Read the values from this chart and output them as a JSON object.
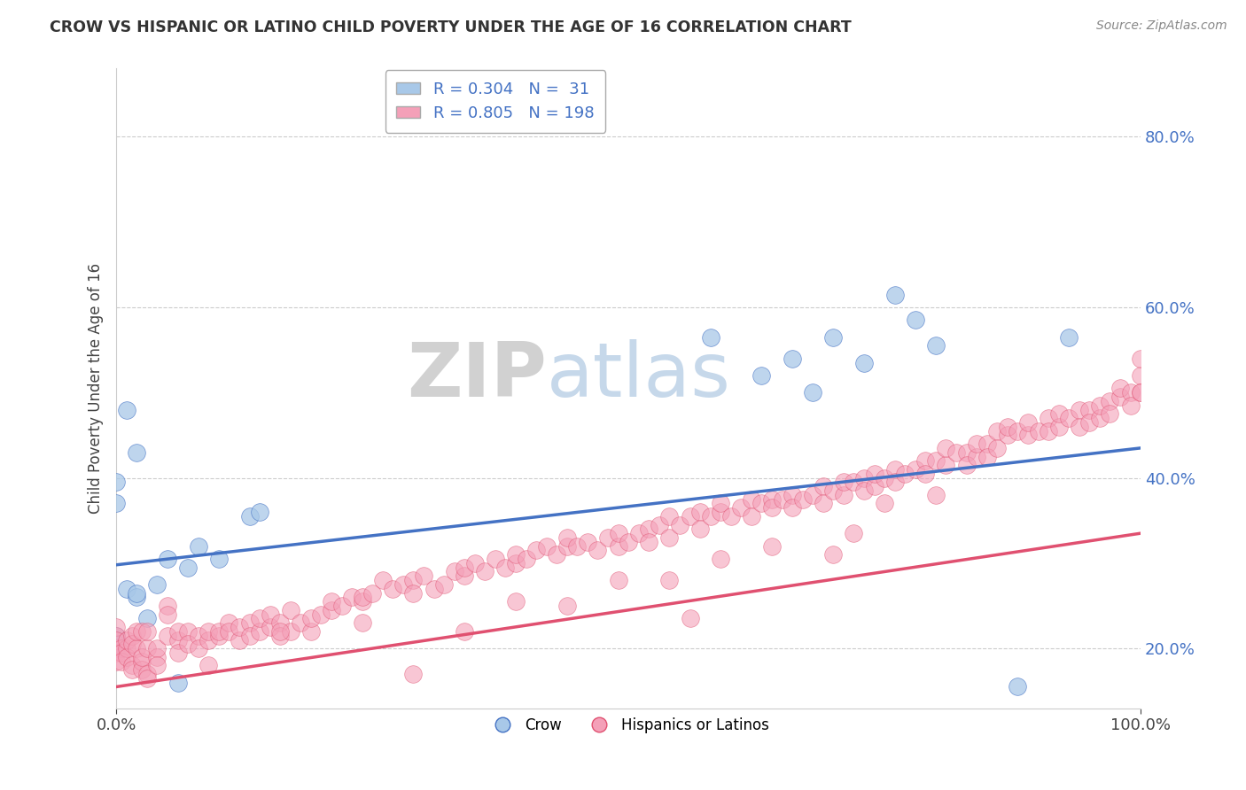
{
  "title": "CROW VS HISPANIC OR LATINO CHILD POVERTY UNDER THE AGE OF 16 CORRELATION CHART",
  "source": "Source: ZipAtlas.com",
  "ylabel": "Child Poverty Under the Age of 16",
  "xlim": [
    0,
    1.0
  ],
  "ylim": [
    0.13,
    0.88
  ],
  "yticks": [
    0.2,
    0.4,
    0.6,
    0.8
  ],
  "ytick_labels": [
    "20.0%",
    "40.0%",
    "60.0%",
    "80.0%"
  ],
  "xticks": [
    0.0,
    1.0
  ],
  "xtick_labels": [
    "0.0%",
    "100.0%"
  ],
  "crow_R": 0.304,
  "crow_N": 31,
  "hispanic_R": 0.805,
  "hispanic_N": 198,
  "crow_color": "#a8c8e8",
  "hispanic_color": "#f4a0b8",
  "crow_line_color": "#4472c4",
  "hispanic_line_color": "#e05070",
  "legend_label_crow": "Crow",
  "legend_label_hispanic": "Hispanics or Latinos",
  "watermark_zip": "ZIP",
  "watermark_atlas": "atlas",
  "background_color": "#ffffff",
  "grid_color": "#cccccc",
  "tick_label_color": "#4472c4",
  "crow_scatter": [
    [
      0.0,
      0.215
    ],
    [
      0.0,
      0.21
    ],
    [
      0.0,
      0.205
    ],
    [
      0.0,
      0.2
    ],
    [
      0.01,
      0.48
    ],
    [
      0.01,
      0.27
    ],
    [
      0.02,
      0.43
    ],
    [
      0.02,
      0.26
    ],
    [
      0.02,
      0.265
    ],
    [
      0.03,
      0.235
    ],
    [
      0.04,
      0.275
    ],
    [
      0.05,
      0.305
    ],
    [
      0.06,
      0.16
    ],
    [
      0.07,
      0.295
    ],
    [
      0.08,
      0.32
    ],
    [
      0.1,
      0.305
    ],
    [
      0.13,
      0.355
    ],
    [
      0.14,
      0.36
    ],
    [
      0.58,
      0.565
    ],
    [
      0.63,
      0.52
    ],
    [
      0.66,
      0.54
    ],
    [
      0.68,
      0.5
    ],
    [
      0.7,
      0.565
    ],
    [
      0.73,
      0.535
    ],
    [
      0.76,
      0.615
    ],
    [
      0.78,
      0.585
    ],
    [
      0.8,
      0.555
    ],
    [
      0.88,
      0.155
    ],
    [
      0.93,
      0.565
    ],
    [
      0.0,
      0.395
    ],
    [
      0.0,
      0.37
    ]
  ],
  "hispanic_scatter": [
    [
      0.0,
      0.2
    ],
    [
      0.0,
      0.195
    ],
    [
      0.0,
      0.185
    ],
    [
      0.0,
      0.215
    ],
    [
      0.0,
      0.225
    ],
    [
      0.0,
      0.21
    ],
    [
      0.005,
      0.2
    ],
    [
      0.005,
      0.195
    ],
    [
      0.005,
      0.185
    ],
    [
      0.01,
      0.2
    ],
    [
      0.01,
      0.21
    ],
    [
      0.01,
      0.19
    ],
    [
      0.015,
      0.215
    ],
    [
      0.015,
      0.205
    ],
    [
      0.015,
      0.18
    ],
    [
      0.015,
      0.175
    ],
    [
      0.02,
      0.2
    ],
    [
      0.02,
      0.22
    ],
    [
      0.025,
      0.185
    ],
    [
      0.025,
      0.175
    ],
    [
      0.025,
      0.22
    ],
    [
      0.025,
      0.19
    ],
    [
      0.03,
      0.17
    ],
    [
      0.03,
      0.165
    ],
    [
      0.03,
      0.2
    ],
    [
      0.03,
      0.22
    ],
    [
      0.04,
      0.19
    ],
    [
      0.04,
      0.2
    ],
    [
      0.04,
      0.18
    ],
    [
      0.05,
      0.215
    ],
    [
      0.05,
      0.25
    ],
    [
      0.05,
      0.24
    ],
    [
      0.06,
      0.21
    ],
    [
      0.06,
      0.195
    ],
    [
      0.06,
      0.22
    ],
    [
      0.07,
      0.22
    ],
    [
      0.07,
      0.205
    ],
    [
      0.08,
      0.215
    ],
    [
      0.08,
      0.2
    ],
    [
      0.09,
      0.21
    ],
    [
      0.09,
      0.22
    ],
    [
      0.09,
      0.18
    ],
    [
      0.1,
      0.215
    ],
    [
      0.1,
      0.22
    ],
    [
      0.11,
      0.23
    ],
    [
      0.11,
      0.22
    ],
    [
      0.12,
      0.21
    ],
    [
      0.12,
      0.225
    ],
    [
      0.13,
      0.23
    ],
    [
      0.13,
      0.215
    ],
    [
      0.14,
      0.22
    ],
    [
      0.14,
      0.235
    ],
    [
      0.15,
      0.225
    ],
    [
      0.15,
      0.24
    ],
    [
      0.16,
      0.23
    ],
    [
      0.16,
      0.215
    ],
    [
      0.17,
      0.245
    ],
    [
      0.17,
      0.22
    ],
    [
      0.18,
      0.23
    ],
    [
      0.19,
      0.22
    ],
    [
      0.19,
      0.235
    ],
    [
      0.2,
      0.24
    ],
    [
      0.21,
      0.245
    ],
    [
      0.21,
      0.255
    ],
    [
      0.22,
      0.25
    ],
    [
      0.23,
      0.26
    ],
    [
      0.24,
      0.255
    ],
    [
      0.24,
      0.26
    ],
    [
      0.25,
      0.265
    ],
    [
      0.26,
      0.28
    ],
    [
      0.27,
      0.27
    ],
    [
      0.28,
      0.275
    ],
    [
      0.29,
      0.28
    ],
    [
      0.29,
      0.265
    ],
    [
      0.3,
      0.285
    ],
    [
      0.31,
      0.27
    ],
    [
      0.32,
      0.275
    ],
    [
      0.33,
      0.29
    ],
    [
      0.34,
      0.285
    ],
    [
      0.34,
      0.295
    ],
    [
      0.35,
      0.3
    ],
    [
      0.36,
      0.29
    ],
    [
      0.37,
      0.305
    ],
    [
      0.38,
      0.295
    ],
    [
      0.39,
      0.3
    ],
    [
      0.39,
      0.31
    ],
    [
      0.4,
      0.305
    ],
    [
      0.41,
      0.315
    ],
    [
      0.42,
      0.32
    ],
    [
      0.43,
      0.31
    ],
    [
      0.44,
      0.32
    ],
    [
      0.44,
      0.33
    ],
    [
      0.45,
      0.32
    ],
    [
      0.46,
      0.325
    ],
    [
      0.47,
      0.315
    ],
    [
      0.48,
      0.33
    ],
    [
      0.49,
      0.32
    ],
    [
      0.49,
      0.335
    ],
    [
      0.5,
      0.325
    ],
    [
      0.51,
      0.335
    ],
    [
      0.52,
      0.34
    ],
    [
      0.52,
      0.325
    ],
    [
      0.53,
      0.345
    ],
    [
      0.54,
      0.33
    ],
    [
      0.54,
      0.355
    ],
    [
      0.55,
      0.345
    ],
    [
      0.56,
      0.355
    ],
    [
      0.57,
      0.36
    ],
    [
      0.57,
      0.34
    ],
    [
      0.58,
      0.355
    ],
    [
      0.59,
      0.36
    ],
    [
      0.59,
      0.37
    ],
    [
      0.6,
      0.355
    ],
    [
      0.61,
      0.365
    ],
    [
      0.62,
      0.375
    ],
    [
      0.62,
      0.355
    ],
    [
      0.63,
      0.37
    ],
    [
      0.64,
      0.375
    ],
    [
      0.64,
      0.365
    ],
    [
      0.65,
      0.375
    ],
    [
      0.66,
      0.38
    ],
    [
      0.66,
      0.365
    ],
    [
      0.67,
      0.375
    ],
    [
      0.68,
      0.38
    ],
    [
      0.69,
      0.39
    ],
    [
      0.69,
      0.37
    ],
    [
      0.7,
      0.385
    ],
    [
      0.71,
      0.38
    ],
    [
      0.71,
      0.395
    ],
    [
      0.72,
      0.395
    ],
    [
      0.73,
      0.4
    ],
    [
      0.73,
      0.385
    ],
    [
      0.74,
      0.39
    ],
    [
      0.74,
      0.405
    ],
    [
      0.75,
      0.4
    ],
    [
      0.76,
      0.41
    ],
    [
      0.76,
      0.395
    ],
    [
      0.77,
      0.405
    ],
    [
      0.78,
      0.41
    ],
    [
      0.79,
      0.42
    ],
    [
      0.79,
      0.405
    ],
    [
      0.8,
      0.42
    ],
    [
      0.81,
      0.415
    ],
    [
      0.81,
      0.435
    ],
    [
      0.82,
      0.43
    ],
    [
      0.83,
      0.43
    ],
    [
      0.83,
      0.415
    ],
    [
      0.84,
      0.425
    ],
    [
      0.84,
      0.44
    ],
    [
      0.85,
      0.44
    ],
    [
      0.85,
      0.425
    ],
    [
      0.86,
      0.455
    ],
    [
      0.86,
      0.435
    ],
    [
      0.87,
      0.45
    ],
    [
      0.87,
      0.46
    ],
    [
      0.88,
      0.455
    ],
    [
      0.89,
      0.45
    ],
    [
      0.89,
      0.465
    ],
    [
      0.9,
      0.455
    ],
    [
      0.91,
      0.47
    ],
    [
      0.91,
      0.455
    ],
    [
      0.92,
      0.46
    ],
    [
      0.92,
      0.475
    ],
    [
      0.93,
      0.47
    ],
    [
      0.94,
      0.48
    ],
    [
      0.94,
      0.46
    ],
    [
      0.95,
      0.48
    ],
    [
      0.95,
      0.465
    ],
    [
      0.96,
      0.47
    ],
    [
      0.96,
      0.485
    ],
    [
      0.97,
      0.49
    ],
    [
      0.97,
      0.475
    ],
    [
      0.98,
      0.495
    ],
    [
      0.98,
      0.505
    ],
    [
      0.99,
      0.5
    ],
    [
      0.99,
      0.485
    ],
    [
      1.0,
      0.52
    ],
    [
      1.0,
      0.5
    ],
    [
      1.0,
      0.54
    ],
    [
      1.0,
      0.5
    ],
    [
      0.16,
      0.22
    ],
    [
      0.24,
      0.23
    ],
    [
      0.29,
      0.17
    ],
    [
      0.34,
      0.22
    ],
    [
      0.39,
      0.255
    ],
    [
      0.44,
      0.25
    ],
    [
      0.49,
      0.28
    ],
    [
      0.54,
      0.28
    ],
    [
      0.59,
      0.305
    ],
    [
      0.64,
      0.32
    ],
    [
      0.56,
      0.235
    ],
    [
      0.7,
      0.31
    ],
    [
      0.72,
      0.335
    ],
    [
      0.75,
      0.37
    ],
    [
      0.8,
      0.38
    ]
  ],
  "crow_line_x": [
    0.0,
    1.0
  ],
  "crow_line_y": [
    0.298,
    0.435
  ],
  "hispanic_line_x": [
    0.0,
    1.0
  ],
  "hispanic_line_y": [
    0.155,
    0.335
  ]
}
